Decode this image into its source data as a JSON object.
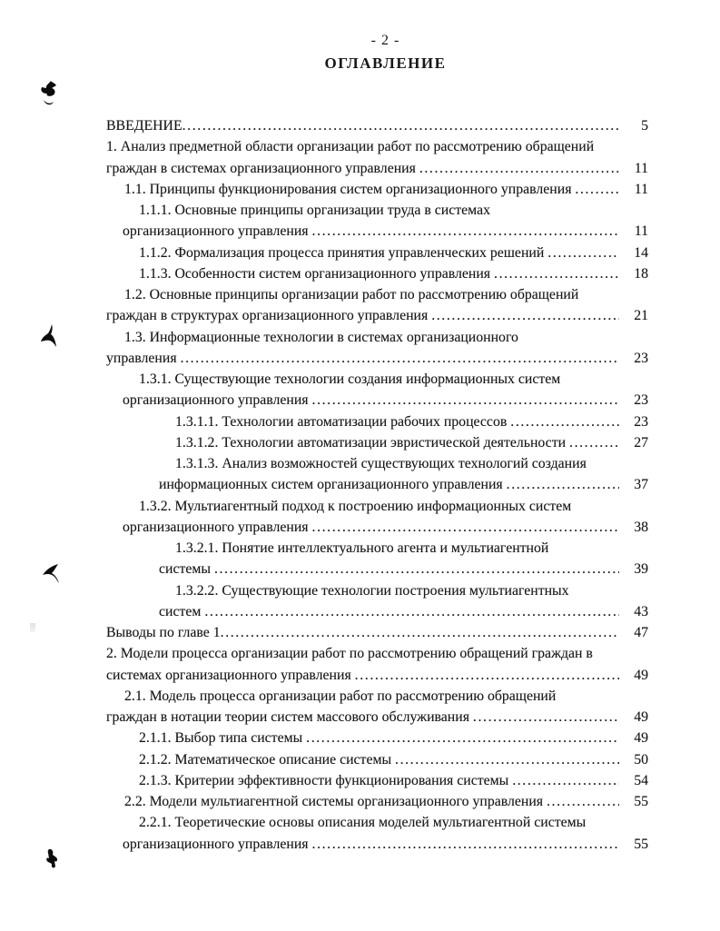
{
  "header": {
    "page_label": "- 2 -",
    "title": "ОГЛАВЛЕНИЕ"
  },
  "toc": {
    "dot_leader": "........................................................................................................................",
    "lines": [
      {
        "text": "ВВЕДЕНИЕ",
        "level": 0,
        "cont": false,
        "page": "5"
      },
      {
        "text": "1. Анализ предметной области организации работ по рассмотрению обращений",
        "level": 0,
        "cont": false,
        "page": ""
      },
      {
        "text": "граждан в системах организационного управления ",
        "level": 0,
        "cont": true,
        "page": "11"
      },
      {
        "text": "1.1. Принципы функционирования систем организационного управления ",
        "level": 1,
        "cont": false,
        "page": "11"
      },
      {
        "text": "1.1.1. Основные принципы организации труда в системах",
        "level": 2,
        "cont": false,
        "page": ""
      },
      {
        "text": "организационного управления ",
        "level": 2,
        "cont": true,
        "page": "11"
      },
      {
        "text": "1.1.2. Формализация процесса принятия управленческих решений ",
        "level": 2,
        "cont": false,
        "page": "14"
      },
      {
        "text": "1.1.3. Особенности систем организационного управления ",
        "level": 2,
        "cont": false,
        "page": "18"
      },
      {
        "text": "1.2. Основные принципы организации работ по рассмотрению обращений",
        "level": 1,
        "cont": false,
        "page": ""
      },
      {
        "text": "граждан в структурах организационного управления ",
        "level": 1,
        "cont": true,
        "page": "21"
      },
      {
        "text": "1.3. Информационные технологии в системах организационного",
        "level": 1,
        "cont": false,
        "page": ""
      },
      {
        "text": "управления ",
        "level": 1,
        "cont": true,
        "page": "23"
      },
      {
        "text": "1.3.1. Существующие технологии создания информационных систем",
        "level": 2,
        "cont": false,
        "page": ""
      },
      {
        "text": "организационного управления ",
        "level": 2,
        "cont": true,
        "page": "23"
      },
      {
        "text": "1.3.1.1. Технологии автоматизации рабочих процессов ",
        "level": 3,
        "cont": false,
        "page": "23"
      },
      {
        "text": "1.3.1.2. Технологии автоматизации эвристической деятельности ",
        "level": 3,
        "cont": false,
        "page": "27"
      },
      {
        "text": "1.3.1.3. Анализ возможностей существующих технологий создания",
        "level": 3,
        "cont": false,
        "page": ""
      },
      {
        "text": "информационных систем организационного управления ",
        "level": 3,
        "cont": true,
        "page": "37"
      },
      {
        "text": "1.3.2. Мультиагентный подход к построению информационных систем",
        "level": 2,
        "cont": false,
        "page": ""
      },
      {
        "text": "организационного управления ",
        "level": 2,
        "cont": true,
        "page": "38"
      },
      {
        "text": "1.3.2.1. Понятие интеллектуального агента и мультиагентной",
        "level": 3,
        "cont": false,
        "page": ""
      },
      {
        "text": "системы ",
        "level": 3,
        "cont": true,
        "page": "39"
      },
      {
        "text": "1.3.2.2. Существующие технологии построения мультиагентных",
        "level": 3,
        "cont": false,
        "page": ""
      },
      {
        "text": "систем ",
        "level": 3,
        "cont": true,
        "page": "43"
      },
      {
        "text": "Выводы по главе 1",
        "level": 0,
        "cont": false,
        "page": "47"
      },
      {
        "text": "2. Модели процесса организации работ по рассмотрению обращений граждан в",
        "level": 0,
        "cont": false,
        "page": ""
      },
      {
        "text": "системах организационного управления ",
        "level": 0,
        "cont": true,
        "page": "49"
      },
      {
        "text": "2.1. Модель процесса организации работ по рассмотрению обращений",
        "level": 1,
        "cont": false,
        "page": ""
      },
      {
        "text": "граждан в нотации теории систем массового обслуживания ",
        "level": 1,
        "cont": true,
        "page": "49"
      },
      {
        "text": "2.1.1. Выбор типа системы ",
        "level": 2,
        "cont": false,
        "page": "49"
      },
      {
        "text": "2.1.2. Математическое описание системы ",
        "level": 2,
        "cont": false,
        "page": "50"
      },
      {
        "text": "2.1.3. Критерии эффективности функционирования системы ",
        "level": 2,
        "cont": false,
        "page": "54"
      },
      {
        "text": "2.2. Модели мультиагентной системы организационного управления ",
        "level": 1,
        "cont": false,
        "page": "55"
      },
      {
        "text": "2.2.1. Теоретические основы описания моделей мультиагентной системы",
        "level": 2,
        "cont": false,
        "page": ""
      },
      {
        "text": "организационного управления ",
        "level": 2,
        "cont": true,
        "page": "55"
      }
    ]
  },
  "artifacts": {
    "marks": [
      "ink-blot",
      "ink-blot",
      "ink-blot",
      "ink-blot",
      "smudge"
    ]
  }
}
